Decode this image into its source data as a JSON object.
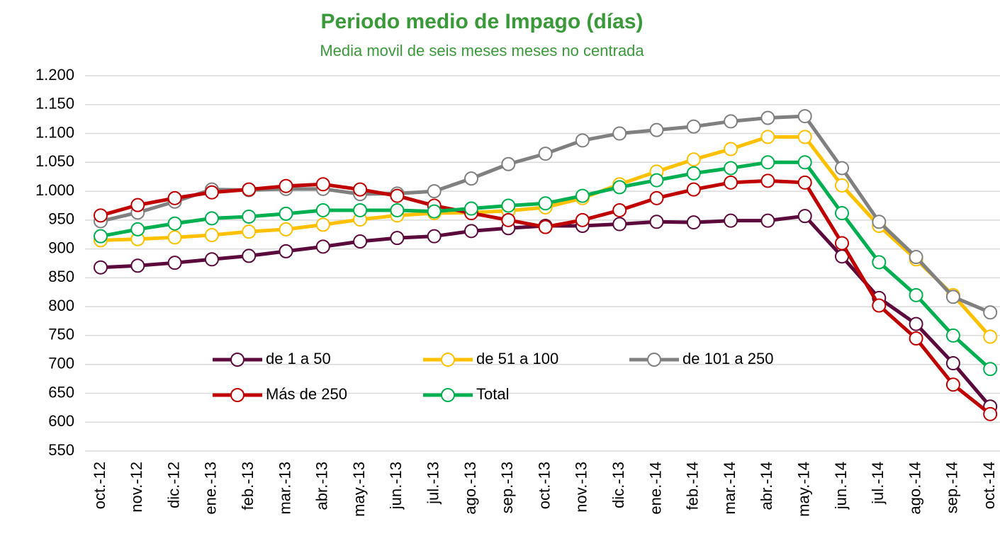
{
  "chart_data": {
    "type": "line",
    "title": "Periodo medio de Impago (días)",
    "subtitle": "Media movil de seis meses meses no centrada",
    "categories": [
      "oct.-12",
      "nov.-12",
      "dic.-12",
      "ene.-13",
      "feb.-13",
      "mar.-13",
      "abr.-13",
      "may.-13",
      "jun.-13",
      "jul.-13",
      "ago.-13",
      "sep.-13",
      "oct.-13",
      "nov.-13",
      "dic.-13",
      "ene.-14",
      "feb.-14",
      "mar.-14",
      "abr.-14",
      "may.-14",
      "jun.-14",
      "jul.-14",
      "ago.-14",
      "sep.-14",
      "oct.-14"
    ],
    "series": [
      {
        "name": "de 1 a 50",
        "color": "#5c0a3c",
        "values": [
          868,
          871,
          876,
          882,
          888,
          896,
          904,
          913,
          919,
          922,
          931,
          936,
          940,
          940,
          943,
          947,
          946,
          949,
          949,
          957,
          887,
          815,
          770,
          702,
          627
        ]
      },
      {
        "name": "de 51 a 100",
        "color": "#ffc000",
        "values": [
          915,
          917,
          920,
          924,
          930,
          934,
          942,
          951,
          958,
          962,
          963,
          966,
          972,
          988,
          1012,
          1034,
          1055,
          1073,
          1094,
          1094,
          1010,
          940,
          882,
          820,
          748
        ]
      },
      {
        "name": "de 101 a 250",
        "color": "#808080",
        "values": [
          948,
          963,
          982,
          1003,
          1002,
          1004,
          1004,
          995,
          996,
          1000,
          1022,
          1047,
          1065,
          1088,
          1100,
          1106,
          1112,
          1121,
          1127,
          1130,
          1040,
          947,
          886,
          817,
          790
        ]
      },
      {
        "name": "Más de 250",
        "color": "#c00000",
        "values": [
          958,
          976,
          988,
          998,
          1003,
          1009,
          1012,
          1003,
          992,
          975,
          962,
          950,
          938,
          950,
          967,
          988,
          1003,
          1015,
          1018,
          1015,
          910,
          802,
          745,
          665,
          614
        ]
      },
      {
        "name": "Total",
        "color": "#00b050",
        "values": [
          922,
          934,
          944,
          953,
          956,
          961,
          967,
          967,
          967,
          965,
          970,
          975,
          979,
          992,
          1007,
          1019,
          1031,
          1040,
          1050,
          1050,
          962,
          877,
          820,
          750,
          692
        ]
      }
    ],
    "ylim": [
      550,
      1200
    ],
    "yticks": [
      550,
      600,
      650,
      700,
      750,
      800,
      850,
      900,
      950,
      {
        "value": 1000,
        "label": "1.000"
      },
      {
        "value": 1050,
        "label": "1.050"
      },
      {
        "value": 1100,
        "label": "1.100"
      },
      {
        "value": 1150,
        "label": "1.150"
      },
      {
        "value": 1200,
        "label": "1.200"
      }
    ],
    "grid": true,
    "legend": "inside"
  }
}
